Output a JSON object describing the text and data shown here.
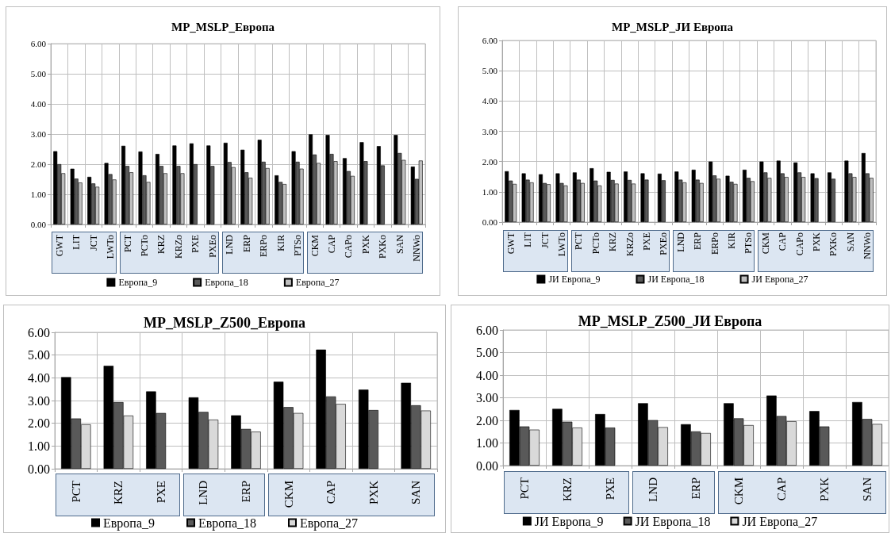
{
  "chart_data": [
    {
      "type": "bar",
      "title": "MP_MSLP_Европа",
      "categories": [
        "GWT",
        "LIT",
        "JCT",
        "LWTo",
        "PCT",
        "PCTo",
        "KRZ",
        "KRZo",
        "PXE",
        "PXEo",
        "LND",
        "ERP",
        "ERPo",
        "KIR",
        "PTSo",
        "CKM",
        "CAP",
        "CAPo",
        "PXK",
        "PXKo",
        "SAN",
        "NNWo"
      ],
      "series": [
        {
          "name": "Европа_9",
          "color": "#000000",
          "values": [
            2.43,
            1.85,
            1.58,
            2.04,
            2.61,
            2.42,
            2.34,
            2.62,
            2.69,
            2.62,
            2.71,
            2.48,
            2.81,
            1.63,
            2.43,
            2.99,
            2.97,
            2.2,
            2.73,
            2.6,
            2.97,
            1.92
          ]
        },
        {
          "name": "Европа_18",
          "color": "#595959",
          "values": [
            2.0,
            1.52,
            1.36,
            1.67,
            1.94,
            1.63,
            1.94,
            1.94,
            2.0,
            1.94,
            2.07,
            1.73,
            2.08,
            1.41,
            2.08,
            2.32,
            2.34,
            1.77,
            2.1,
            1.96,
            2.37,
            1.51
          ]
        },
        {
          "name": "Европа_27",
          "color": "#bfbfbf",
          "values": [
            1.7,
            1.39,
            1.25,
            1.49,
            1.73,
            1.41,
            1.7,
            1.7,
            null,
            null,
            1.9,
            1.55,
            1.87,
            1.34,
            1.85,
            2.04,
            2.1,
            1.61,
            null,
            null,
            2.14,
            2.12
          ]
        }
      ],
      "ylim": [
        0,
        6
      ],
      "yticks": [
        {
          "value": 0,
          "label": "0.00"
        },
        {
          "value": 1,
          "label": "1.00"
        },
        {
          "value": 2,
          "label": "2.00"
        },
        {
          "value": 3,
          "label": "3.00"
        },
        {
          "value": 4,
          "label": "4.00"
        },
        {
          "value": 5,
          "label": "5.00"
        },
        {
          "value": 6,
          "label": "6.00"
        }
      ],
      "grid": true,
      "legend": "bottom"
    },
    {
      "type": "bar",
      "title": "MP_MSLP_ЈИ Европа",
      "categories": [
        "GWT",
        "LIT",
        "JCT",
        "LWTo",
        "PCT",
        "PCTo",
        "KRZ",
        "KRZo",
        "PXE",
        "PXEo",
        "LND",
        "ERP",
        "ERPo",
        "KIR",
        "PTSo",
        "CKM",
        "CAP",
        "CAPo",
        "PXK",
        "PXKo",
        "SAN",
        "NNWo"
      ],
      "series": [
        {
          "name": "ЈИ Европа_9",
          "color": "#000000",
          "values": [
            1.68,
            1.61,
            1.58,
            1.61,
            1.64,
            1.78,
            1.66,
            1.67,
            1.61,
            1.6,
            1.67,
            1.73,
            2.0,
            1.53,
            1.73,
            2.0,
            2.03,
            1.97,
            1.61,
            1.64,
            2.03,
            2.28
          ]
        },
        {
          "name": "ЈИ Европа_18",
          "color": "#595959",
          "values": [
            1.37,
            1.4,
            1.29,
            1.29,
            1.4,
            1.37,
            1.39,
            1.39,
            1.4,
            1.38,
            1.4,
            1.4,
            1.54,
            1.33,
            1.46,
            1.64,
            1.61,
            1.64,
            1.45,
            1.43,
            1.61,
            1.61
          ]
        },
        {
          "name": "ЈИ Европа_27",
          "color": "#bfbfbf",
          "values": [
            1.26,
            1.31,
            1.25,
            1.21,
            1.29,
            1.21,
            1.27,
            1.27,
            null,
            null,
            1.31,
            1.29,
            1.43,
            1.26,
            1.35,
            1.46,
            1.49,
            1.49,
            null,
            null,
            1.49,
            1.46
          ]
        }
      ],
      "ylim": [
        0,
        6
      ],
      "yticks": [
        {
          "value": 0,
          "label": "0.00"
        },
        {
          "value": 1,
          "label": "1.00"
        },
        {
          "value": 2,
          "label": "2.00"
        },
        {
          "value": 3,
          "label": "3.00"
        },
        {
          "value": 4,
          "label": "4.00"
        },
        {
          "value": 5,
          "label": "5.00"
        },
        {
          "value": 6,
          "label": "6.00"
        }
      ],
      "grid": true,
      "legend": "bottom"
    },
    {
      "type": "bar",
      "title": "MP_MSLP_Z500_Европа",
      "categories": [
        "PCT",
        "KRZ",
        "PXE",
        "LND",
        "ERP",
        "CKM",
        "CAP",
        "PXK",
        "SAN"
      ],
      "series": [
        {
          "name": "Европа_9",
          "color": "#000000",
          "values": [
            4.03,
            4.53,
            3.4,
            3.14,
            2.35,
            3.83,
            5.24,
            3.48,
            3.78
          ]
        },
        {
          "name": "Европа_18",
          "color": "#595959",
          "values": [
            2.21,
            2.93,
            2.45,
            2.5,
            1.75,
            2.71,
            3.18,
            2.58,
            2.79
          ]
        },
        {
          "name": "Европа_27",
          "color": "#d9d9d9",
          "values": [
            1.95,
            2.34,
            null,
            2.16,
            1.63,
            2.45,
            2.85,
            null,
            2.56
          ]
        }
      ],
      "ylim": [
        0,
        6
      ],
      "yticks": [
        {
          "value": 0,
          "label": "0.00"
        },
        {
          "value": 1,
          "label": "1.00"
        },
        {
          "value": 2,
          "label": "2.00"
        },
        {
          "value": 3,
          "label": "3.00"
        },
        {
          "value": 4,
          "label": "4.00"
        },
        {
          "value": 5,
          "label": "5.00"
        },
        {
          "value": 6,
          "label": "6.00"
        }
      ],
      "grid": true,
      "legend": "bottom"
    },
    {
      "type": "bar",
      "title": "MP_MSLP_Z500_ЈИ Европа",
      "categories": [
        "PCT",
        "KRZ",
        "PXE",
        "LND",
        "ERP",
        "CKM",
        "CAP",
        "PXK",
        "SAN"
      ],
      "series": [
        {
          "name": "ЈИ Европа_9",
          "color": "#000000",
          "values": [
            2.46,
            2.51,
            2.28,
            2.76,
            1.83,
            2.76,
            3.1,
            2.41,
            2.81
          ]
        },
        {
          "name": "ЈИ Европа_18",
          "color": "#595959",
          "values": [
            1.73,
            1.94,
            1.68,
            2.01,
            1.51,
            2.09,
            2.19,
            1.73,
            2.06
          ]
        },
        {
          "name": "ЈИ Европа_27",
          "color": "#d9d9d9",
          "values": [
            1.59,
            1.68,
            null,
            1.7,
            1.44,
            1.79,
            1.96,
            null,
            1.84
          ]
        }
      ],
      "ylim": [
        0,
        6
      ],
      "yticks": [
        {
          "value": 0,
          "label": "0.00"
        },
        {
          "value": 1,
          "label": "1.00"
        },
        {
          "value": 2,
          "label": "2.00"
        },
        {
          "value": 3,
          "label": "3.00"
        },
        {
          "value": 4,
          "label": "4.00"
        },
        {
          "value": 5,
          "label": "5.00"
        },
        {
          "value": 6,
          "label": "6.00"
        }
      ],
      "grid": true,
      "legend": "bottom"
    }
  ]
}
